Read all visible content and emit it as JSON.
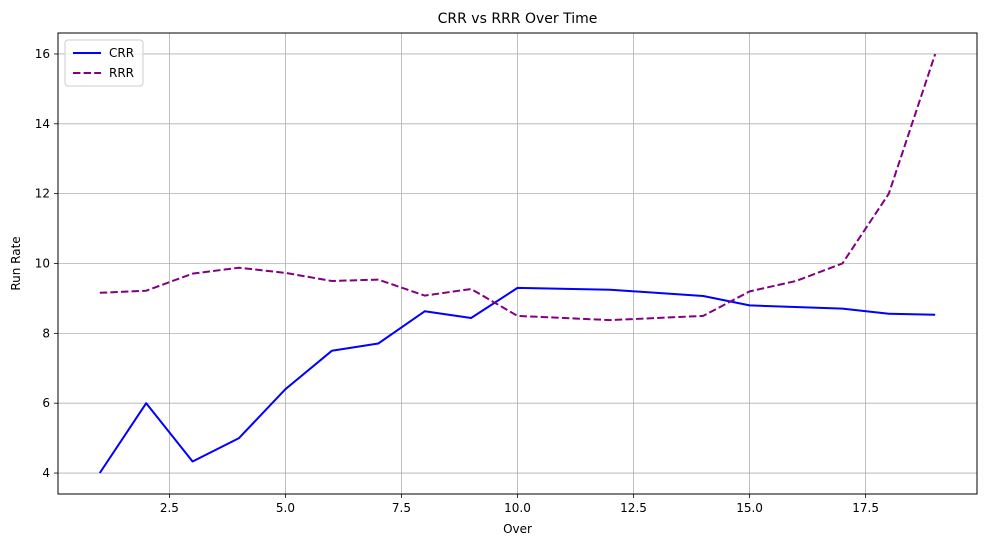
{
  "chart_data": {
    "type": "line",
    "title": "CRR vs RRR Over Time",
    "xlabel": "Over",
    "ylabel": "Run Rate",
    "xlim": [
      0.1,
      19.9
    ],
    "ylim": [
      3.4,
      16.6
    ],
    "xticks": [
      2.5,
      5.0,
      7.5,
      10.0,
      12.5,
      15.0,
      17.5
    ],
    "xtick_labels": [
      "2.5",
      "5.0",
      "7.5",
      "10.0",
      "12.5",
      "15.0",
      "17.5"
    ],
    "yticks": [
      4,
      6,
      8,
      10,
      12,
      14,
      16
    ],
    "ytick_labels": [
      "4",
      "6",
      "8",
      "10",
      "12",
      "14",
      "16"
    ],
    "grid": true,
    "legend_position": "upper-left",
    "series": [
      {
        "name": "CRR",
        "color": "#0000ff",
        "style": "solid",
        "x": [
          1,
          2,
          3,
          4,
          5,
          6,
          7,
          8,
          9,
          10,
          12,
          14,
          15,
          17,
          18,
          19
        ],
        "y": [
          4.0,
          6.0,
          4.33,
          5.0,
          6.4,
          7.5,
          7.71,
          8.63,
          8.44,
          9.3,
          9.25,
          9.07,
          8.8,
          8.71,
          8.56,
          8.53
        ]
      },
      {
        "name": "RRR",
        "color": "#800080",
        "style": "dashed",
        "x": [
          1,
          2,
          3,
          4,
          5,
          6,
          7,
          8,
          9,
          10,
          12,
          14,
          15,
          16,
          17,
          18,
          19
        ],
        "y": [
          9.16,
          9.22,
          9.71,
          9.88,
          9.73,
          9.5,
          9.54,
          9.08,
          9.27,
          8.5,
          8.38,
          8.5,
          9.2,
          9.5,
          10.0,
          12.0,
          16.0
        ]
      }
    ]
  }
}
